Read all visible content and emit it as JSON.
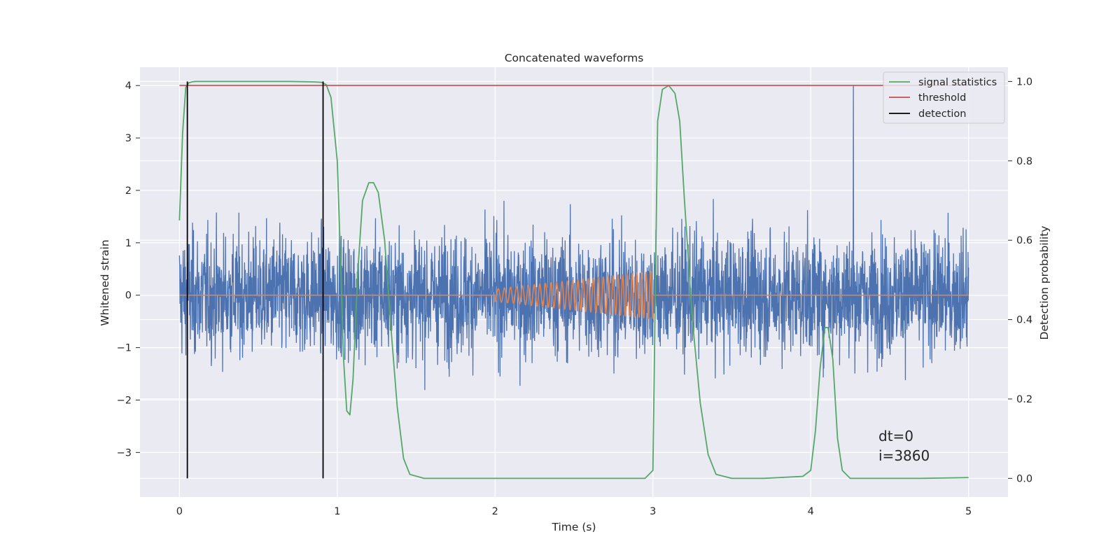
{
  "chart_data": {
    "type": "line",
    "title": "Concatenated waveforms",
    "xlabel": "Time (s)",
    "ylabel_left": "Whitened strain",
    "ylabel_right": "Detection probability",
    "xlim": [
      -0.25,
      5.25
    ],
    "ylim_left": [
      -3.85,
      4.35
    ],
    "ylim_right": [
      -0.047,
      1.036
    ],
    "x_ticks": [
      0,
      1,
      2,
      3,
      4,
      5
    ],
    "x_tick_labels": [
      "0",
      "1",
      "2",
      "3",
      "4",
      "5"
    ],
    "y_left_ticks": [
      -3,
      -2,
      -1,
      0,
      1,
      2,
      3,
      4
    ],
    "y_left_tick_labels": [
      "−3",
      "−2",
      "−1",
      "0",
      "1",
      "2",
      "3",
      "4"
    ],
    "y_right_ticks": [
      0.0,
      0.2,
      0.4,
      0.6,
      0.8,
      1.0
    ],
    "y_right_tick_labels": [
      "0.0",
      "0.2",
      "0.4",
      "0.6",
      "0.8",
      "1.0"
    ],
    "grid": true,
    "legend_position": "top-right",
    "legend": [
      {
        "label": "signal statistics",
        "color": "#55a868"
      },
      {
        "label": "threshold",
        "color": "#c44e52"
      },
      {
        "label": "detection",
        "color": "#000000"
      }
    ],
    "series": [
      {
        "name": "strain",
        "axis": "left",
        "color": "#4c72b0",
        "kind": "noise",
        "x_range": [
          0,
          5
        ],
        "amplitude_typical": 1.3,
        "amplitude_max": 4.0,
        "max_at": 4.27
      },
      {
        "name": "injected waveform",
        "axis": "left",
        "color": "#dd8452",
        "kind": "chirp",
        "start": 2.0,
        "end": 3.0,
        "amplitude_start": 0.12,
        "amplitude_end": 0.45
      },
      {
        "name": "signal statistics",
        "axis": "right",
        "color": "#55a868",
        "x": [
          0,
          0.02,
          0.04,
          0.06,
          0.08,
          0.1,
          0.3,
          0.5,
          0.7,
          0.85,
          0.9,
          0.93,
          0.96,
          1.0,
          1.02,
          1.04,
          1.06,
          1.08,
          1.1,
          1.13,
          1.16,
          1.2,
          1.23,
          1.26,
          1.3,
          1.34,
          1.38,
          1.42,
          1.46,
          1.55,
          2.0,
          2.5,
          2.95,
          3.0,
          3.03,
          3.06,
          3.1,
          3.14,
          3.17,
          3.2,
          3.25,
          3.3,
          3.35,
          3.4,
          3.5,
          3.7,
          3.95,
          4.0,
          4.03,
          4.06,
          4.09,
          4.11,
          4.14,
          4.17,
          4.2,
          4.25,
          4.4,
          4.7,
          5.0
        ],
        "values": [
          0.65,
          0.87,
          0.985,
          0.997,
          0.999,
          1.0,
          1.0,
          1.0,
          1.0,
          0.999,
          0.998,
          0.992,
          0.96,
          0.8,
          0.56,
          0.3,
          0.17,
          0.16,
          0.25,
          0.52,
          0.7,
          0.745,
          0.745,
          0.72,
          0.6,
          0.38,
          0.18,
          0.05,
          0.01,
          0.0,
          0.0,
          0.0,
          0.0,
          0.02,
          0.9,
          0.98,
          0.99,
          0.97,
          0.9,
          0.7,
          0.4,
          0.19,
          0.06,
          0.01,
          0.0,
          0.0,
          0.005,
          0.02,
          0.12,
          0.28,
          0.38,
          0.38,
          0.3,
          0.1,
          0.02,
          0.0,
          0.0,
          0.0,
          0.002
        ]
      },
      {
        "name": "threshold",
        "axis": "right",
        "color": "#c44e52",
        "x": [
          0,
          5
        ],
        "values": [
          0.99,
          0.99
        ]
      },
      {
        "name": "detection",
        "axis": "right",
        "color": "#000000",
        "kind": "vlines",
        "x": [
          0.05,
          0.91
        ],
        "range": [
          0.0,
          1.0
        ]
      }
    ],
    "annotations": [
      "dt=0",
      "i=3860"
    ]
  }
}
